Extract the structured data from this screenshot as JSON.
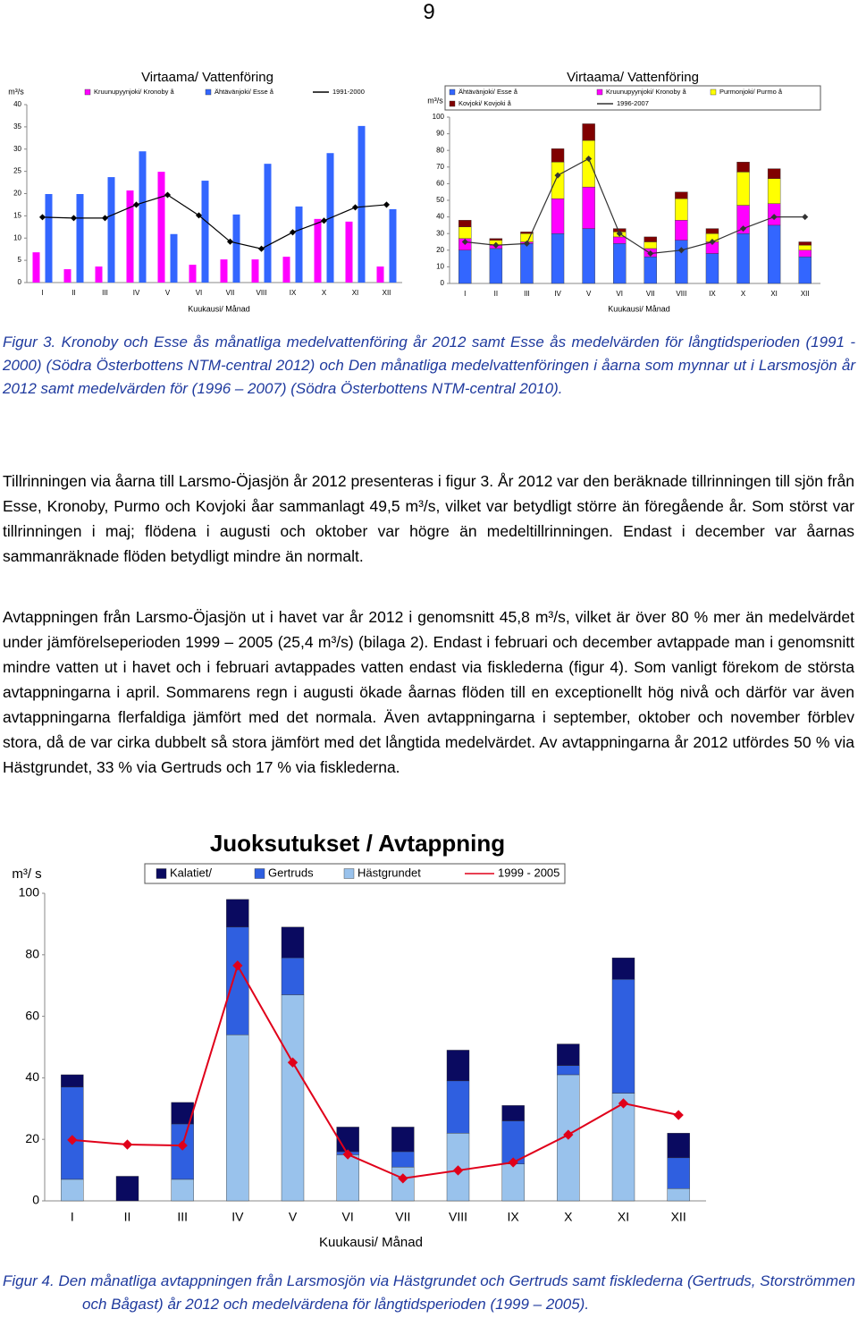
{
  "page_number": "9",
  "chart_data": [
    {
      "type": "bar",
      "stacked": false,
      "title": "Virtaama/ Vattenföring",
      "y_label": "m³/s",
      "x_label": "Kuukausi/ Månad",
      "categories": [
        "I",
        "II",
        "III",
        "IV",
        "V",
        "VI",
        "VII",
        "VIII",
        "IX",
        "X",
        "XI",
        "XII"
      ],
      "ylim": [
        0,
        40
      ],
      "yticks": [
        0,
        5,
        10,
        15,
        20,
        25,
        30,
        35,
        40
      ],
      "grid": false,
      "series": [
        {
          "name": "Kruunupyynjoki/ Kronoby å",
          "color": "#ff00ff",
          "values": [
            6.8,
            3,
            3.6,
            20.7,
            24.9,
            4,
            5.2,
            5.2,
            5.8,
            14.3,
            13.7,
            3.6
          ]
        },
        {
          "name": "Ähtävänjoki/ Esse å",
          "color": "#3366ff",
          "values": [
            19.9,
            19.9,
            23.7,
            29.5,
            10.9,
            22.9,
            15.3,
            26.7,
            17.1,
            29.1,
            35.2,
            16.5
          ]
        },
        {
          "name": "1991-2000",
          "type": "line",
          "color": "#000000",
          "values": [
            14.7,
            14.5,
            14.5,
            17.5,
            19.7,
            15.1,
            9.2,
            7.6,
            11.3,
            13.9,
            16.9,
            17.5
          ]
        }
      ]
    },
    {
      "type": "bar",
      "stacked": true,
      "title": "Virtaama/ Vattenföring",
      "y_label": "m³/s",
      "x_label": "Kuukausi/ Månad",
      "categories": [
        "I",
        "II",
        "III",
        "IV",
        "V",
        "VI",
        "VII",
        "VIII",
        "IX",
        "X",
        "XI",
        "XII"
      ],
      "ylim": [
        0,
        100
      ],
      "yticks": [
        0,
        10,
        20,
        30,
        40,
        50,
        60,
        70,
        80,
        90,
        100
      ],
      "grid": false,
      "series": [
        {
          "name": "Ähtävänjoki/ Esse å",
          "color": "#3366ff",
          "values": [
            20,
            21,
            24,
            30,
            33,
            24,
            16,
            26,
            18,
            30,
            35,
            16
          ]
        },
        {
          "name": "Kruunupyynjoki/ Kronoby å",
          "color": "#ff00ff",
          "values": [
            7,
            2,
            1,
            21,
            25,
            4,
            5,
            12,
            7,
            17,
            13,
            4
          ]
        },
        {
          "name": "Purmonjoki/ Purmo å",
          "color": "#ffff00",
          "values": [
            7,
            3,
            5,
            22,
            28,
            3,
            4,
            13,
            5,
            20,
            15,
            3
          ]
        },
        {
          "name": "Kovjoki/ Kovjoki å",
          "color": "#800000",
          "values": [
            4,
            1,
            1,
            8,
            10,
            2,
            3,
            4,
            3,
            6,
            6,
            2
          ]
        },
        {
          "name": "1996-2007",
          "type": "line",
          "color": "#333333",
          "values": [
            25,
            23,
            24,
            65,
            75,
            30,
            18,
            20,
            25,
            33,
            40,
            40
          ]
        }
      ]
    },
    {
      "type": "bar",
      "stacked": true,
      "title": "Juoksutukset / Avtappning",
      "y_label": "m³/ s",
      "x_label": "Kuukausi/ Månad",
      "categories": [
        "I",
        "II",
        "III",
        "IV",
        "V",
        "VI",
        "VII",
        "VIII",
        "IX",
        "X",
        "XI",
        "XII"
      ],
      "ylim": [
        0,
        100
      ],
      "yticks": [
        0,
        20,
        40,
        60,
        80,
        100
      ],
      "grid": false,
      "series": [
        {
          "name": "Hästgrundet",
          "color": "#99c2ec",
          "values": [
            7,
            0,
            7,
            54,
            67,
            15,
            11,
            22,
            12,
            41,
            35,
            4
          ]
        },
        {
          "name": "Gertruds",
          "color": "#2f5fe0",
          "values": [
            30,
            0,
            18,
            35,
            12,
            1,
            5,
            17,
            14,
            3,
            37,
            10
          ]
        },
        {
          "name": "Kalatiet/",
          "color": "#0a0a60",
          "values": [
            4,
            8,
            7,
            9,
            10,
            8,
            8,
            10,
            5,
            7,
            7,
            8
          ]
        },
        {
          "name": "1999 - 2005",
          "type": "line",
          "color": "#e0001a",
          "values": [
            19.8,
            18.3,
            18,
            76.5,
            45,
            15.1,
            7.3,
            9.9,
            12.5,
            21.5,
            31.7,
            27.9
          ]
        }
      ]
    }
  ],
  "figure3_caption": "Figur 3. Kronoby och Esse ås månatliga medelvattenföring år 2012 samt Esse ås medelvärden för långtidsperioden (1991 - 2000) (Södra Österbottens NTM-central 2012) och Den månatliga medelvattenföringen i åarna som mynnar ut i Larsmosjön år 2012 samt medelvärden för (1996 – 2007) (Södra Österbottens NTM-central 2010).",
  "paragraphs": [
    "Tillrinningen via åarna till Larsmo-Öjasjön år 2012 presenteras i figur 3. År 2012 var den beräknade tillrinningen till sjön från Esse, Kronoby, Purmo och Kovjoki åar sammanlagt 49,5 m³/s, vilket var betydligt större än föregående år. Som störst var tillrinningen i maj; flödena i augusti och oktober var högre än medeltillrinningen. Endast i december var åarnas sammanräknade flöden betydligt mindre än normalt.",
    "Avtappningen från Larsmo-Öjasjön ut i havet var år 2012 i genomsnitt 45,8 m³/s, vilket är över 80 % mer än medelvärdet under jämförelseperioden 1999 – 2005 (25,4 m³/s) (bilaga 2). Endast i februari och december avtappade man i genomsnitt mindre vatten ut i havet och i februari avtappades vatten endast via fisklederna (figur 4). Som vanligt förekom de största avtappningarna i april. Sommarens regn i augusti ökade åarnas flöden till en exceptionellt hög nivå och därför var även avtappningarna flerfaldiga jämfört med det normala. Även avtappningarna i september, oktober och november förblev stora, då de var cirka dubbelt så stora jämfört med det långtida medelvärdet. Av avtappningarna år 2012 utfördes 50 % via Hästgrundet, 33 % via Gertruds och 17 % via fisklederna."
  ],
  "figure4_caption": "Figur 4. Den månatliga avtappningen från Larsmosjön via Hästgrundet och Gertruds samt fisklederna (Gertruds, Storströmmen och Bågast) år 2012 och medelvärdena för långtidsperioden (1999 – 2005)."
}
